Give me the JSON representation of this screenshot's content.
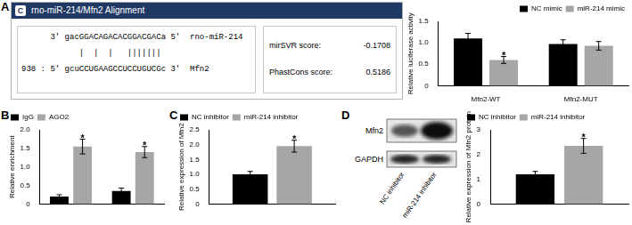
{
  "panel_labels": [
    "A",
    "B",
    "C",
    "D"
  ],
  "alignment": {
    "icon": "C",
    "title": "rno-miR-214/Mfn2 Alignment",
    "mirna": {
      "prefix": "3'",
      "sequence": "gacGGACAGACACGGACGACa",
      "suffix": "5'",
      "name": "rno-miR-214"
    },
    "pairing": "   |  |  |   ||||||| ",
    "target": {
      "prefix": "938 : 5'",
      "sequence": "gcuCCUGAAGCCUCCUGUCGc",
      "suffix": "3'",
      "name": "Mfn2"
    },
    "scores": [
      {
        "label": "mirSVR score:",
        "value": "-0.1708"
      },
      {
        "label": "PhastCons score:",
        "value": "0.5186"
      }
    ]
  },
  "blot": {
    "rows": [
      "Mfn2",
      "GAPDH"
    ],
    "lanes": [
      "NC inhibitor",
      "miR-214 inhibitor"
    ]
  },
  "chart_data": [
    {
      "type": "bar",
      "categories": [
        "Mfn2-WT",
        "Mfn2-MUT"
      ],
      "series": [
        {
          "name": "NC mimic",
          "color": "#000000",
          "values": [
            1.1,
            0.97
          ],
          "errors": [
            0.12,
            0.1
          ],
          "annotations": [
            null,
            null
          ]
        },
        {
          "name": "miR-214 mimic",
          "color": "#a6a6a6",
          "values": [
            0.6,
            0.93
          ],
          "errors": [
            0.08,
            0.1
          ],
          "annotations": [
            "*",
            null
          ]
        }
      ],
      "ylabel": "Relative luciferase activity",
      "ylim": [
        0,
        1.5
      ],
      "yticks": [
        0,
        0.5,
        {
          "value": 1,
          "label": "1.0"
        },
        1.5
      ],
      "grid": false,
      "legend": "top-right"
    },
    {
      "type": "bar",
      "categories": [
        null,
        null
      ],
      "series": [
        {
          "name": "IgG",
          "color": "#000000",
          "values": [
            0.2,
            0.35
          ],
          "errors": [
            0.05,
            0.08
          ],
          "annotations": [
            null,
            null
          ]
        },
        {
          "name": "AGO2",
          "color": "#a6a6a6",
          "values": [
            1.55,
            1.4
          ],
          "errors": [
            0.2,
            0.15
          ],
          "annotations": [
            "*",
            "*"
          ]
        }
      ],
      "ylabel": "Relative enrichment",
      "ylim": [
        0,
        2
      ],
      "yticks": [
        0,
        0.5,
        {
          "value": 1,
          "label": "1.0"
        },
        1.5,
        {
          "value": 2,
          "label": "2.0"
        }
      ],
      "grid": false,
      "legend": "top-left"
    },
    {
      "type": "bar",
      "categories": [
        null
      ],
      "series": [
        {
          "name": "NC inhibitor",
          "color": "#000000",
          "values": [
            1.0
          ],
          "errors": [
            0.1
          ],
          "annotations": [
            null
          ]
        },
        {
          "name": "miR-214 inhibitor",
          "color": "#a6a6a6",
          "values": [
            1.95
          ],
          "errors": [
            0.2
          ],
          "annotations": [
            "*"
          ]
        }
      ],
      "ylabel": "Relative expression of Mfn2",
      "ylim": [
        0,
        2.5
      ],
      "yticks": [
        0,
        0.5,
        {
          "value": 1,
          "label": "1.0"
        },
        1.5,
        {
          "value": 2,
          "label": "2.0"
        },
        2.5
      ],
      "grid": false,
      "legend": "top-left"
    },
    {
      "type": "bar",
      "categories": [
        null
      ],
      "series": [
        {
          "name": "NC inhibitor",
          "color": "#000000",
          "values": [
            1.2
          ],
          "errors": [
            0.12
          ],
          "annotations": [
            null
          ]
        },
        {
          "name": "miR-214 inhibitor",
          "color": "#a6a6a6",
          "values": [
            2.35
          ],
          "errors": [
            0.3
          ],
          "annotations": [
            "*"
          ]
        }
      ],
      "ylabel": "Relative expression of Mfn2 protein",
      "ylim": [
        0,
        3
      ],
      "yticks": [
        0,
        1,
        2,
        3
      ],
      "grid": false,
      "legend": "top-left"
    }
  ]
}
